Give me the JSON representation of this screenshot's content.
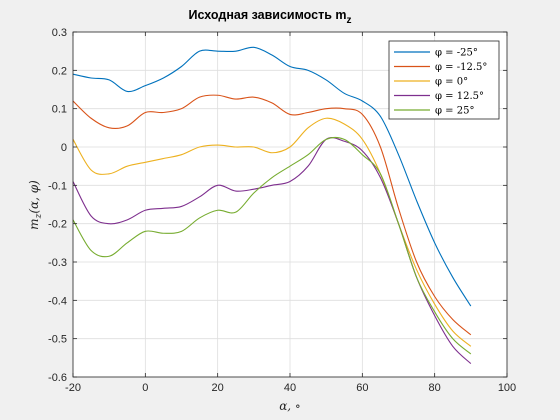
{
  "chart_data": {
    "type": "line",
    "title": "Исходная зависимость m",
    "title_sub": "z",
    "xlabel": "α, ∘",
    "ylabel": "m_z(α, φ)",
    "ylabel_main": "m",
    "ylabel_sub": "z",
    "ylabel_rest": "(α, φ)",
    "xlim": [
      -20,
      100
    ],
    "ylim": [
      -0.6,
      0.3
    ],
    "xticks": [
      -20,
      0,
      20,
      40,
      60,
      80,
      100
    ],
    "yticks": [
      -0.6,
      -0.5,
      -0.4,
      -0.3,
      -0.2,
      -0.1,
      0,
      0.1,
      0.2,
      0.3
    ],
    "xtick_labels": [
      "-20",
      "0",
      "20",
      "40",
      "60",
      "80",
      "100"
    ],
    "ytick_labels": [
      "-0.6",
      "-0.5",
      "-0.4",
      "-0.3",
      "-0.2",
      "-0.1",
      "0",
      "0.1",
      "0.2",
      "0.3"
    ],
    "grid": true,
    "legend_position": "top-right",
    "series": [
      {
        "name": "φ = -25°",
        "color": "#0072BD",
        "x": [
          -20,
          -15,
          -10,
          -5,
          0,
          5,
          10,
          15,
          20,
          25,
          30,
          35,
          40,
          45,
          50,
          55,
          60,
          65,
          70,
          75,
          80,
          85,
          90
        ],
        "y": [
          0.19,
          0.18,
          0.175,
          0.145,
          0.16,
          0.18,
          0.21,
          0.25,
          0.25,
          0.25,
          0.26,
          0.24,
          0.21,
          0.2,
          0.175,
          0.14,
          0.12,
          0.08,
          -0.02,
          -0.14,
          -0.25,
          -0.34,
          -0.415
        ]
      },
      {
        "name": "φ = -12.5°",
        "color": "#D95319",
        "x": [
          -20,
          -15,
          -10,
          -5,
          0,
          5,
          10,
          15,
          20,
          25,
          30,
          35,
          40,
          45,
          50,
          55,
          60,
          65,
          70,
          75,
          80,
          85,
          90
        ],
        "y": [
          0.12,
          0.075,
          0.05,
          0.055,
          0.09,
          0.09,
          0.1,
          0.13,
          0.135,
          0.125,
          0.13,
          0.115,
          0.085,
          0.09,
          0.1,
          0.1,
          0.085,
          0.0,
          -0.16,
          -0.3,
          -0.39,
          -0.45,
          -0.49
        ]
      },
      {
        "name": "φ = 0°",
        "color": "#EDB120",
        "x": [
          -20,
          -15,
          -10,
          -5,
          0,
          5,
          10,
          15,
          20,
          25,
          30,
          35,
          40,
          45,
          50,
          55,
          60,
          65,
          70,
          75,
          80,
          85,
          90
        ],
        "y": [
          0.02,
          -0.06,
          -0.07,
          -0.05,
          -0.04,
          -0.03,
          -0.02,
          0.0,
          0.005,
          0.0,
          0.0,
          -0.015,
          0.0,
          0.05,
          0.075,
          0.06,
          0.02,
          -0.07,
          -0.2,
          -0.32,
          -0.41,
          -0.48,
          -0.52
        ]
      },
      {
        "name": "φ = 12.5°",
        "color": "#7E2F8E",
        "x": [
          -20,
          -15,
          -10,
          -5,
          0,
          5,
          10,
          15,
          20,
          25,
          30,
          35,
          40,
          45,
          50,
          55,
          60,
          65,
          70,
          75,
          80,
          85,
          90
        ],
        "y": [
          -0.09,
          -0.18,
          -0.2,
          -0.19,
          -0.165,
          -0.16,
          -0.155,
          -0.13,
          -0.1,
          -0.115,
          -0.11,
          -0.1,
          -0.09,
          -0.05,
          0.02,
          0.015,
          -0.01,
          -0.08,
          -0.2,
          -0.34,
          -0.44,
          -0.52,
          -0.565
        ]
      },
      {
        "name": "φ = 25°",
        "color": "#77AC30",
        "x": [
          -20,
          -15,
          -10,
          -5,
          0,
          5,
          10,
          15,
          20,
          25,
          30,
          35,
          40,
          45,
          50,
          55,
          60,
          65,
          70,
          75,
          80,
          85,
          90
        ],
        "y": [
          -0.19,
          -0.27,
          -0.285,
          -0.25,
          -0.22,
          -0.225,
          -0.22,
          -0.185,
          -0.165,
          -0.17,
          -0.12,
          -0.08,
          -0.05,
          -0.02,
          0.02,
          0.02,
          -0.02,
          -0.07,
          -0.2,
          -0.34,
          -0.43,
          -0.5,
          -0.54
        ]
      }
    ]
  }
}
